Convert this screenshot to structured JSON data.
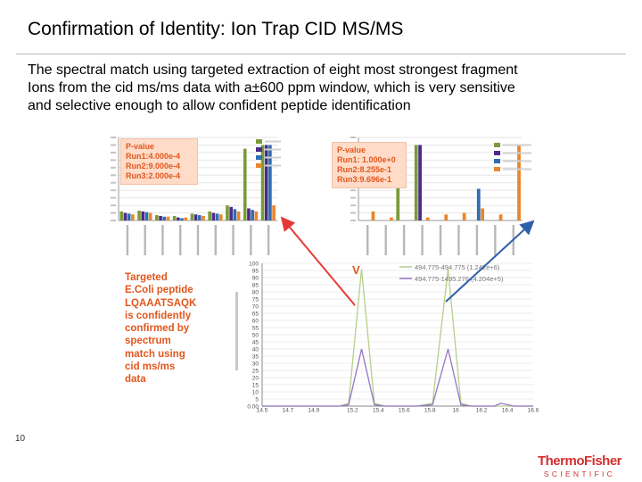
{
  "slide": {
    "title": "Confirmation of Identity: Ion Trap CID MS/MS",
    "body_lines": [
      "The spectral match using targeted extraction of eight most strongest fragment",
      "Ions from the cid ms/ms data with a±600 ppm window, which is very sensitive",
      "and selective enough to allow confident peptide identification"
    ],
    "page_number": "10",
    "logo_line1": "ThermoFisher",
    "logo_line2": "SCIENTIFIC",
    "description_lines": [
      "Targeted",
      "E.Coli peptide",
      "LQAAATSAQK",
      "is confidently",
      "confirmed by",
      "spectrum",
      "match using",
      "cid ms/ms",
      "data"
    ],
    "pvalue_box_1": [
      "P-value",
      "Run1:4.000e-4",
      "Run2:9.000e-4",
      "Run3:2.000e-4"
    ],
    "pvalue_box_2": [
      "P-value",
      "Run1: 1.000e+0",
      "Run2:8.255e-1",
      "Run3:9.696e-1"
    ],
    "peak_marker": "V"
  },
  "colors": {
    "accent": "#e2561c",
    "arrow_red": "#e53935",
    "arrow_blue": "#2f5fa8",
    "series": [
      "#7a9a3a",
      "#4b2a8a",
      "#2f6db0",
      "#e8862c"
    ],
    "xic_green": "#b5cf8a",
    "xic_purple": "#9474c4"
  },
  "chart_data": [
    {
      "type": "bar",
      "ylim": [
        0,
        110
      ],
      "legend_position": "top-right",
      "series": [
        {
          "values": [
            12,
            13,
            7,
            6,
            9,
            12,
            20,
            95,
            100
          ]
        },
        {
          "values": [
            10,
            12,
            6,
            4,
            8,
            10,
            18,
            16,
            100
          ]
        },
        {
          "values": [
            9,
            11,
            5,
            3,
            7,
            9,
            15,
            14,
            100
          ]
        },
        {
          "values": [
            8,
            10,
            5,
            4,
            6,
            8,
            12,
            12,
            20
          ]
        }
      ]
    },
    {
      "type": "bar",
      "ylim": [
        0,
        110
      ],
      "legend_position": "top-right",
      "series": [
        {
          "values": [
            0,
            0,
            100,
            100,
            0,
            0,
            0,
            0,
            0
          ]
        },
        {
          "values": [
            0,
            0,
            0,
            100,
            0,
            0,
            0,
            0,
            0
          ]
        },
        {
          "values": [
            0,
            0,
            0,
            0,
            0,
            0,
            42,
            0,
            0
          ]
        },
        {
          "values": [
            12,
            4,
            0,
            4,
            8,
            10,
            16,
            8,
            100
          ]
        }
      ]
    },
    {
      "type": "line",
      "ylim": [
        0,
        100
      ],
      "y_ticks": [
        "0.00",
        "5",
        "10",
        "15",
        "20",
        "25",
        "30",
        "35",
        "40",
        "45",
        "50",
        "55",
        "60",
        "65",
        "70",
        "75",
        "80",
        "85",
        "90",
        "95",
        "100"
      ],
      "x_ticks": [
        "14.5",
        "14.7",
        "14.9",
        "15.2",
        "15.4",
        "15.6",
        "15.8",
        "16",
        "16.2",
        "16.4",
        "16.6"
      ],
      "x_range": [
        14.5,
        16.6
      ],
      "legend_position": "top-right",
      "series": [
        {
          "name": "494.775-494.775 (1.242e+6)",
          "x": [
            14.5,
            15.0,
            15.1,
            15.17,
            15.27,
            15.37,
            15.45,
            15.55,
            15.7,
            15.82,
            15.94,
            16.04,
            16.12,
            16.3,
            16.6
          ],
          "y": [
            0,
            0,
            0,
            2,
            96,
            2,
            0,
            0,
            0,
            2,
            96,
            2,
            0,
            0,
            0
          ]
        },
        {
          "name": "494.775-1495.276 (4.204e+5)",
          "x": [
            14.5,
            15.0,
            15.1,
            15.17,
            15.27,
            15.37,
            15.45,
            15.55,
            15.7,
            15.82,
            15.94,
            16.04,
            16.12,
            16.3,
            16.35,
            16.45,
            16.6
          ],
          "y": [
            0,
            0,
            0,
            1,
            40,
            1,
            0,
            0,
            0,
            1,
            40,
            1,
            0,
            0,
            2,
            0,
            0
          ]
        }
      ]
    }
  ]
}
